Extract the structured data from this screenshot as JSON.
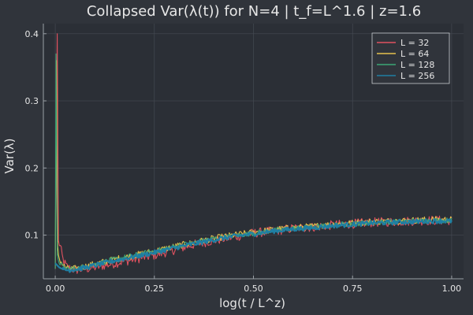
{
  "chart_data": {
    "type": "line",
    "title": "Collapsed Var(λ(t)) for N=4 | t_f=L^1.6 | z=1.6",
    "xlabel": "log(t / L^z)",
    "ylabel": "Var(λ)",
    "xlim": [
      -0.03,
      1.03
    ],
    "ylim": [
      0.035,
      0.415
    ],
    "xticks": [
      0.0,
      0.25,
      0.5,
      0.75,
      1.0
    ],
    "xtick_labels": [
      "0.00",
      "0.25",
      "0.50",
      "0.75",
      "1.00"
    ],
    "yticks": [
      0.1,
      0.2,
      0.3,
      0.4
    ],
    "ytick_labels": [
      "0.1",
      "0.2",
      "0.3",
      "0.4"
    ],
    "grid": true,
    "legend_position": "top-right",
    "background": "#30343b",
    "series": [
      {
        "name": "L = 32",
        "color": "#e05260",
        "points": [
          [
            0.0,
            0.05
          ],
          [
            0.005,
            0.4
          ],
          [
            0.008,
            0.09
          ],
          [
            0.012,
            0.085
          ],
          [
            0.02,
            0.062
          ],
          [
            0.03,
            0.052
          ],
          [
            0.05,
            0.048
          ],
          [
            0.08,
            0.05
          ],
          [
            0.1,
            0.052
          ],
          [
            0.15,
            0.058
          ],
          [
            0.2,
            0.064
          ],
          [
            0.25,
            0.07
          ],
          [
            0.3,
            0.078
          ],
          [
            0.35,
            0.086
          ],
          [
            0.4,
            0.092
          ],
          [
            0.45,
            0.097
          ],
          [
            0.5,
            0.103
          ],
          [
            0.55,
            0.106
          ],
          [
            0.6,
            0.11
          ],
          [
            0.65,
            0.112
          ],
          [
            0.7,
            0.115
          ],
          [
            0.75,
            0.117
          ],
          [
            0.8,
            0.119
          ],
          [
            0.85,
            0.12
          ],
          [
            0.9,
            0.121
          ],
          [
            0.95,
            0.122
          ],
          [
            1.0,
            0.122
          ]
        ],
        "noise": 0.007
      },
      {
        "name": "L = 64",
        "color": "#e6c24e",
        "points": [
          [
            0.0,
            0.05
          ],
          [
            0.003,
            0.36
          ],
          [
            0.006,
            0.08
          ],
          [
            0.01,
            0.065
          ],
          [
            0.02,
            0.055
          ],
          [
            0.03,
            0.05
          ],
          [
            0.05,
            0.05
          ],
          [
            0.08,
            0.054
          ],
          [
            0.1,
            0.057
          ],
          [
            0.15,
            0.064
          ],
          [
            0.2,
            0.07
          ],
          [
            0.25,
            0.076
          ],
          [
            0.3,
            0.083
          ],
          [
            0.35,
            0.089
          ],
          [
            0.4,
            0.095
          ],
          [
            0.45,
            0.1
          ],
          [
            0.5,
            0.104
          ],
          [
            0.55,
            0.108
          ],
          [
            0.6,
            0.111
          ],
          [
            0.65,
            0.113
          ],
          [
            0.7,
            0.116
          ],
          [
            0.75,
            0.118
          ],
          [
            0.8,
            0.12
          ],
          [
            0.85,
            0.121
          ],
          [
            0.9,
            0.122
          ],
          [
            0.95,
            0.123
          ],
          [
            1.0,
            0.123
          ]
        ],
        "noise": 0.005
      },
      {
        "name": "L = 128",
        "color": "#3aa676",
        "points": [
          [
            0.0,
            0.05
          ],
          [
            0.002,
            0.37
          ],
          [
            0.005,
            0.07
          ],
          [
            0.01,
            0.06
          ],
          [
            0.02,
            0.052
          ],
          [
            0.03,
            0.05
          ],
          [
            0.05,
            0.05
          ],
          [
            0.08,
            0.054
          ],
          [
            0.1,
            0.057
          ],
          [
            0.15,
            0.064
          ],
          [
            0.2,
            0.07
          ],
          [
            0.25,
            0.076
          ],
          [
            0.3,
            0.083
          ],
          [
            0.35,
            0.089
          ],
          [
            0.4,
            0.095
          ],
          [
            0.45,
            0.099
          ],
          [
            0.5,
            0.103
          ],
          [
            0.55,
            0.107
          ],
          [
            0.6,
            0.11
          ],
          [
            0.65,
            0.112
          ],
          [
            0.7,
            0.115
          ],
          [
            0.75,
            0.117
          ],
          [
            0.8,
            0.119
          ],
          [
            0.85,
            0.12
          ],
          [
            0.9,
            0.121
          ],
          [
            0.95,
            0.122
          ],
          [
            1.0,
            0.122
          ]
        ],
        "noise": 0.004
      },
      {
        "name": "L = 256",
        "color": "#1f7fa3",
        "points": [
          [
            0.0,
            0.058
          ],
          [
            0.01,
            0.052
          ],
          [
            0.02,
            0.049
          ],
          [
            0.03,
            0.048
          ],
          [
            0.05,
            0.049
          ],
          [
            0.08,
            0.052
          ],
          [
            0.1,
            0.055
          ],
          [
            0.15,
            0.062
          ],
          [
            0.2,
            0.068
          ],
          [
            0.25,
            0.074
          ],
          [
            0.3,
            0.081
          ],
          [
            0.35,
            0.087
          ],
          [
            0.4,
            0.093
          ],
          [
            0.45,
            0.098
          ],
          [
            0.5,
            0.102
          ],
          [
            0.55,
            0.106
          ],
          [
            0.6,
            0.109
          ],
          [
            0.65,
            0.111
          ],
          [
            0.7,
            0.114
          ],
          [
            0.75,
            0.116
          ],
          [
            0.8,
            0.118
          ],
          [
            0.85,
            0.119
          ],
          [
            0.9,
            0.12
          ],
          [
            0.95,
            0.121
          ],
          [
            1.0,
            0.121
          ]
        ],
        "noise": 0.0035
      }
    ]
  }
}
